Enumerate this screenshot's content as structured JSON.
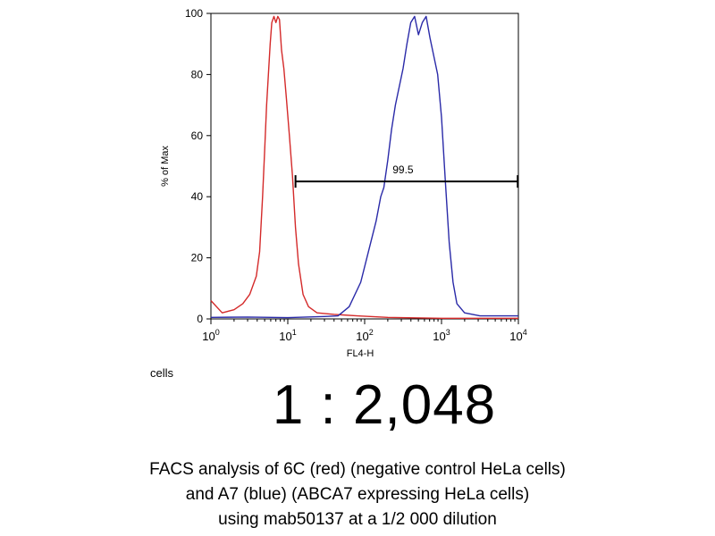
{
  "chart_data": {
    "type": "line",
    "xlabel": "FL4-H",
    "ylabel": "% of Max",
    "x_scale": "log",
    "xlim": [
      1,
      10000
    ],
    "ylim": [
      0,
      100
    ],
    "x_ticks": [
      {
        "value": 1,
        "base": "10",
        "exp": "0"
      },
      {
        "value": 10,
        "base": "10",
        "exp": "1"
      },
      {
        "value": 100,
        "base": "10",
        "exp": "2"
      },
      {
        "value": 1000,
        "base": "10",
        "exp": "3"
      },
      {
        "value": 10000,
        "base": "10",
        "exp": "4"
      }
    ],
    "y_ticks": [
      0,
      20,
      40,
      60,
      80,
      100
    ],
    "gate": {
      "label": "99.5",
      "x_start": 12.6,
      "x_end": 9800,
      "y": 45
    },
    "series": [
      {
        "color": "#d42a2a",
        "points": [
          [
            1,
            6
          ],
          [
            1.4,
            2
          ],
          [
            2,
            3
          ],
          [
            2.6,
            5
          ],
          [
            3.2,
            8
          ],
          [
            3.9,
            14
          ],
          [
            4.3,
            22
          ],
          [
            4.7,
            40
          ],
          [
            5.0,
            55
          ],
          [
            5.3,
            70
          ],
          [
            5.6,
            80
          ],
          [
            5.9,
            90
          ],
          [
            6.2,
            97
          ],
          [
            6.6,
            99
          ],
          [
            7.0,
            97
          ],
          [
            7.4,
            99
          ],
          [
            7.8,
            98
          ],
          [
            8.3,
            88
          ],
          [
            8.9,
            82
          ],
          [
            9.6,
            72
          ],
          [
            10.5,
            60
          ],
          [
            11.5,
            47
          ],
          [
            12.6,
            30
          ],
          [
            13.8,
            18
          ],
          [
            15.8,
            8
          ],
          [
            18.6,
            4
          ],
          [
            24,
            2
          ],
          [
            40,
            1.5
          ],
          [
            80,
            1
          ],
          [
            200,
            0.5
          ],
          [
            1000,
            0.2
          ],
          [
            10000,
            0.2
          ]
        ]
      },
      {
        "color": "#2a2aa8",
        "points": [
          [
            1,
            0.5
          ],
          [
            3,
            0.6
          ],
          [
            10,
            0.4
          ],
          [
            30,
            0.8
          ],
          [
            45,
            1
          ],
          [
            63,
            4
          ],
          [
            89,
            12
          ],
          [
            112,
            22
          ],
          [
            141,
            32
          ],
          [
            162,
            40
          ],
          [
            178,
            43
          ],
          [
            200,
            52
          ],
          [
            224,
            62
          ],
          [
            251,
            70
          ],
          [
            282,
            76
          ],
          [
            316,
            82
          ],
          [
            355,
            90
          ],
          [
            398,
            97
          ],
          [
            447,
            99
          ],
          [
            501,
            93
          ],
          [
            562,
            97
          ],
          [
            631,
            99
          ],
          [
            708,
            92
          ],
          [
            794,
            86
          ],
          [
            891,
            80
          ],
          [
            1000,
            66
          ],
          [
            1122,
            45
          ],
          [
            1259,
            25
          ],
          [
            1413,
            12
          ],
          [
            1585,
            5
          ],
          [
            1995,
            2
          ],
          [
            3162,
            1
          ],
          [
            10000,
            1
          ]
        ]
      }
    ]
  },
  "labels": {
    "cells": "cells",
    "ratio": "1 : 2,048",
    "caption": [
      "FACS analysis of 6C (red) (negative control HeLa cells)",
      "and A7 (blue) (ABCA7 expressing HeLa cells)",
      "using mab50137 at a 1/2 000 dilution"
    ]
  }
}
